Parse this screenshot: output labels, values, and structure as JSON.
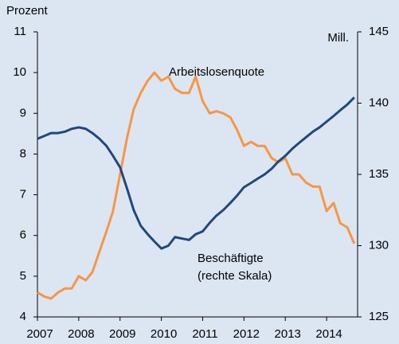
{
  "chart_data": {
    "type": "line",
    "y_label": "Prozent",
    "y2_label": "Mill.",
    "annotations": [
      "(rechte Skala)"
    ],
    "x": [
      2007,
      2007.17,
      2007.33,
      2007.5,
      2007.67,
      2007.83,
      2008,
      2008.17,
      2008.33,
      2008.5,
      2008.67,
      2008.83,
      2009,
      2009.17,
      2009.33,
      2009.5,
      2009.67,
      2009.83,
      2010,
      2010.17,
      2010.33,
      2010.5,
      2010.67,
      2010.83,
      2011,
      2011.17,
      2011.33,
      2011.5,
      2011.67,
      2011.83,
      2012,
      2012.17,
      2012.33,
      2012.5,
      2012.67,
      2012.83,
      2013,
      2013.17,
      2013.33,
      2013.5,
      2013.67,
      2013.83,
      2014,
      2014.17,
      2014.33,
      2014.5,
      2014.67
    ],
    "series": [
      {
        "name": "Arbeitslosenquote",
        "color": "#f79646",
        "axis": "y",
        "values": [
          4.6,
          4.5,
          4.45,
          4.6,
          4.7,
          4.7,
          5.0,
          4.9,
          5.1,
          5.6,
          6.1,
          6.6,
          7.5,
          8.4,
          9.1,
          9.5,
          9.8,
          10.0,
          9.8,
          9.9,
          9.6,
          9.5,
          9.5,
          9.9,
          9.3,
          9.0,
          9.05,
          9.0,
          8.9,
          8.6,
          8.2,
          8.3,
          8.2,
          8.2,
          7.9,
          7.8,
          7.9,
          7.5,
          7.5,
          7.3,
          7.2,
          7.2,
          6.6,
          6.8,
          6.3,
          6.2,
          5.8
        ]
      },
      {
        "name": "Beschäftigte",
        "color": "#1f497d",
        "axis": "y2",
        "values": [
          137.5,
          137.7,
          137.9,
          137.9,
          138.0,
          138.2,
          138.3,
          138.2,
          137.9,
          137.5,
          137.0,
          136.3,
          135.5,
          134.0,
          132.5,
          131.4,
          130.8,
          130.3,
          129.8,
          130.0,
          130.6,
          130.5,
          130.4,
          130.8,
          131.0,
          131.6,
          132.1,
          132.5,
          133.0,
          133.5,
          134.1,
          134.4,
          134.7,
          135.0,
          135.4,
          135.9,
          136.3,
          136.8,
          137.2,
          137.6,
          138.0,
          138.3,
          138.7,
          139.1,
          139.5,
          139.9,
          140.4
        ]
      }
    ],
    "xlim": [
      2007,
      2014.75
    ],
    "xticks": [
      2007,
      2008,
      2009,
      2010,
      2011,
      2012,
      2013,
      2014
    ],
    "ylim": [
      4,
      11
    ],
    "yticks": [
      4,
      5,
      6,
      7,
      8,
      9,
      10,
      11
    ],
    "y2lim": [
      125,
      145
    ],
    "y2ticks": [
      125,
      130,
      135,
      140,
      145
    ],
    "grid": false,
    "background": "#dce6f2"
  }
}
